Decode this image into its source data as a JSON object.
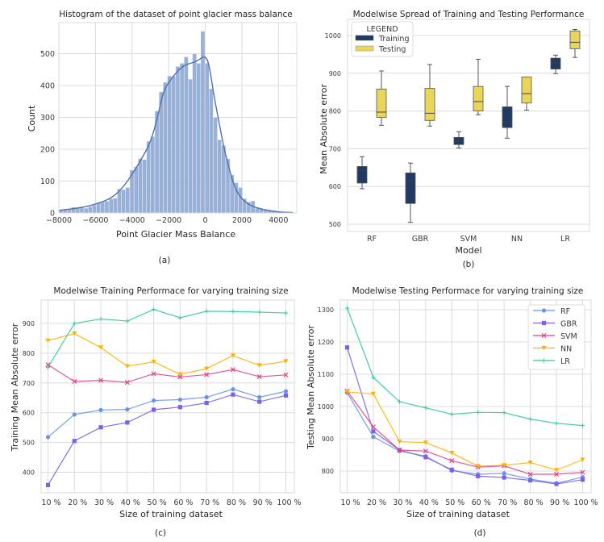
{
  "chart_data": [
    {
      "id": "a",
      "type": "bar",
      "subtype": "histogram-with-kde",
      "title": "Histogram of the dataset of point glacier mass balance",
      "xlabel": "Point Glacier Mass Balance",
      "ylabel": "Count",
      "caption": "(a)",
      "xlim": [
        -8000,
        5000
      ],
      "ylim": [
        0,
        580
      ],
      "xticks": [
        "−8000",
        "−6000",
        "−4000",
        "−2000",
        "0",
        "2000",
        "4000"
      ],
      "xtick_values": [
        -8000,
        -6000,
        -4000,
        -2000,
        0,
        2000,
        4000
      ],
      "yticks": [
        "0",
        "100",
        "200",
        "300",
        "400",
        "500"
      ],
      "ytick_values": [
        0,
        100,
        200,
        300,
        400,
        500
      ],
      "bin_start": -8000,
      "bin_width": 228,
      "counts": [
        8,
        10,
        12,
        18,
        16,
        17,
        15,
        20,
        25,
        32,
        35,
        37,
        45,
        46,
        75,
        73,
        80,
        135,
        145,
        170,
        168,
        225,
        240,
        320,
        380,
        410,
        430,
        430,
        460,
        470,
        490,
        420,
        500,
        470,
        570,
        470,
        390,
        300,
        230,
        212,
        170,
        120,
        95,
        80,
        45,
        35,
        38,
        15,
        14,
        12,
        10,
        8,
        5,
        3,
        2,
        2
      ],
      "kde": [
        [
          -8000,
          8
        ],
        [
          -7000,
          15
        ],
        [
          -6500,
          20
        ],
        [
          -6000,
          28
        ],
        [
          -5500,
          37
        ],
        [
          -5000,
          52
        ],
        [
          -4500,
          80
        ],
        [
          -4000,
          120
        ],
        [
          -3500,
          168
        ],
        [
          -3000,
          220
        ],
        [
          -2600,
          300
        ],
        [
          -2300,
          380
        ],
        [
          -2000,
          410
        ],
        [
          -1600,
          440
        ],
        [
          -1200,
          462
        ],
        [
          -800,
          470
        ],
        [
          -500,
          475
        ],
        [
          -250,
          485
        ],
        [
          0,
          492
        ],
        [
          200,
          470
        ],
        [
          500,
          360
        ],
        [
          800,
          270
        ],
        [
          1000,
          210
        ],
        [
          1300,
          140
        ],
        [
          1600,
          80
        ],
        [
          2000,
          42
        ],
        [
          2500,
          22
        ],
        [
          3000,
          13
        ],
        [
          3500,
          7
        ],
        [
          4000,
          3
        ],
        [
          4800,
          1
        ]
      ],
      "bar_color": "#8fa8d3",
      "line_color": "#4c72b0"
    },
    {
      "id": "b",
      "type": "box",
      "title": "Modelwise Spread  of Training and Testing Performance",
      "xlabel": "Model",
      "ylabel": "Mean Absolute error",
      "caption": "(b)",
      "categories": [
        "RF",
        "GBR",
        "SVM",
        "NN",
        "LR"
      ],
      "ylim": [
        480,
        1040
      ],
      "yticks": [
        "500",
        "600",
        "700",
        "800",
        "900",
        "1000"
      ],
      "ytick_values": [
        500,
        600,
        700,
        800,
        900,
        1000
      ],
      "legend": {
        "title": "LEGEND",
        "position": "top-left"
      },
      "series": [
        {
          "name": "Training",
          "color": "#1f3a64",
          "boxes": [
            {
              "min": 594,
              "q1": 609,
              "median": 642,
              "q3": 653,
              "max": 679
            },
            {
              "min": 505,
              "q1": 555,
              "median": 615,
              "q3": 636,
              "max": 662
            },
            {
              "min": 702,
              "q1": 711,
              "median": 722,
              "q3": 730,
              "max": 745
            },
            {
              "min": 728,
              "q1": 756,
              "median": 771,
              "q3": 811,
              "max": 865
            },
            {
              "min": 899,
              "q1": 911,
              "median": 927,
              "q3": 940,
              "max": 948
            }
          ]
        },
        {
          "name": "Testing",
          "color": "#e8d55a",
          "boxes": [
            {
              "min": 762,
              "q1": 783,
              "median": 797,
              "q3": 858,
              "max": 906
            },
            {
              "min": 760,
              "q1": 775,
              "median": 794,
              "q3": 860,
              "max": 923
            },
            {
              "min": 790,
              "q1": 800,
              "median": 825,
              "q3": 865,
              "max": 937
            },
            {
              "min": 802,
              "q1": 821,
              "median": 846,
              "q3": 890,
              "max": 890
            },
            {
              "min": 942,
              "q1": 965,
              "median": 982,
              "q3": 1012,
              "max": 1016
            }
          ]
        }
      ]
    },
    {
      "id": "c",
      "type": "line",
      "title": "Modelwise Training Performace  for varying training size",
      "xlabel": "Size of training dataset",
      "ylabel": "Training Mean Absolute error",
      "caption": "(c)",
      "categories": [
        "10 %",
        "20 %",
        "30 %",
        "40 %",
        "50 %",
        "60 %",
        "70 %",
        "80 %",
        "90 %",
        "100 %"
      ],
      "ylim": [
        330,
        975
      ],
      "yticks": [
        "400",
        "500",
        "600",
        "700",
        "800",
        "900"
      ],
      "ytick_values": [
        400,
        500,
        600,
        700,
        800,
        900
      ],
      "series": [
        {
          "name": "RF",
          "color": "#6495ed",
          "marker": "circle",
          "values": [
            518,
            594,
            609,
            611,
            641,
            644,
            652,
            679,
            652,
            672
          ]
        },
        {
          "name": "GBR",
          "color": "#7b61e6",
          "marker": "square",
          "values": [
            357,
            505,
            551,
            567,
            610,
            619,
            633,
            661,
            637,
            658
          ]
        },
        {
          "name": "SVM",
          "color": "#e0428a",
          "marker": "x",
          "values": [
            761,
            705,
            709,
            702,
            731,
            720,
            728,
            745,
            721,
            727
          ]
        },
        {
          "name": "NN",
          "color": "#ffb000",
          "marker": "triangle-down",
          "values": [
            842,
            866,
            819,
            756,
            771,
            729,
            748,
            792,
            759,
            773
          ]
        },
        {
          "name": "LR",
          "color": "#2ecc8f",
          "marker": "plus",
          "values": [
            752,
            900,
            915,
            908,
            947,
            919,
            941,
            940,
            938,
            935
          ]
        }
      ]
    },
    {
      "id": "d",
      "type": "line",
      "title": "Modelwise Testing Performace  for varying training size",
      "xlabel": "Size of training dataset",
      "ylabel": "Testing Mean Absolute error",
      "caption": "(d)",
      "categories": [
        "10 %",
        "20 %",
        "30 %",
        "40 %",
        "50 %",
        "60 %",
        "70 %",
        "80 %",
        "90 %",
        "100 %"
      ],
      "ylim": [
        735,
        1335
      ],
      "yticks": [
        "800",
        "900",
        "1000",
        "1100",
        "1200",
        "1300"
      ],
      "ytick_values": [
        800,
        900,
        1000,
        1100,
        1200,
        1300
      ],
      "legend": {
        "position": "top-right"
      },
      "series": [
        {
          "name": "RF",
          "color": "#6495ed",
          "marker": "circle",
          "values": [
            1043,
            906,
            862,
            846,
            801,
            790,
            793,
            775,
            762,
            781
          ]
        },
        {
          "name": "GBR",
          "color": "#7b61e6",
          "marker": "square",
          "values": [
            1183,
            923,
            865,
            843,
            804,
            784,
            780,
            771,
            760,
            773
          ]
        },
        {
          "name": "SVM",
          "color": "#e0428a",
          "marker": "x",
          "values": [
            1048,
            937,
            865,
            862,
            832,
            812,
            816,
            790,
            790,
            796
          ]
        },
        {
          "name": "NN",
          "color": "#ffb000",
          "marker": "triangle-down",
          "values": [
            1045,
            1039,
            891,
            888,
            856,
            815,
            818,
            826,
            803,
            835
          ]
        },
        {
          "name": "LR",
          "color": "#2ecc8f",
          "marker": "plus",
          "values": [
            1305,
            1090,
            1015,
            996,
            976,
            982,
            981,
            961,
            948,
            941
          ]
        }
      ]
    }
  ]
}
